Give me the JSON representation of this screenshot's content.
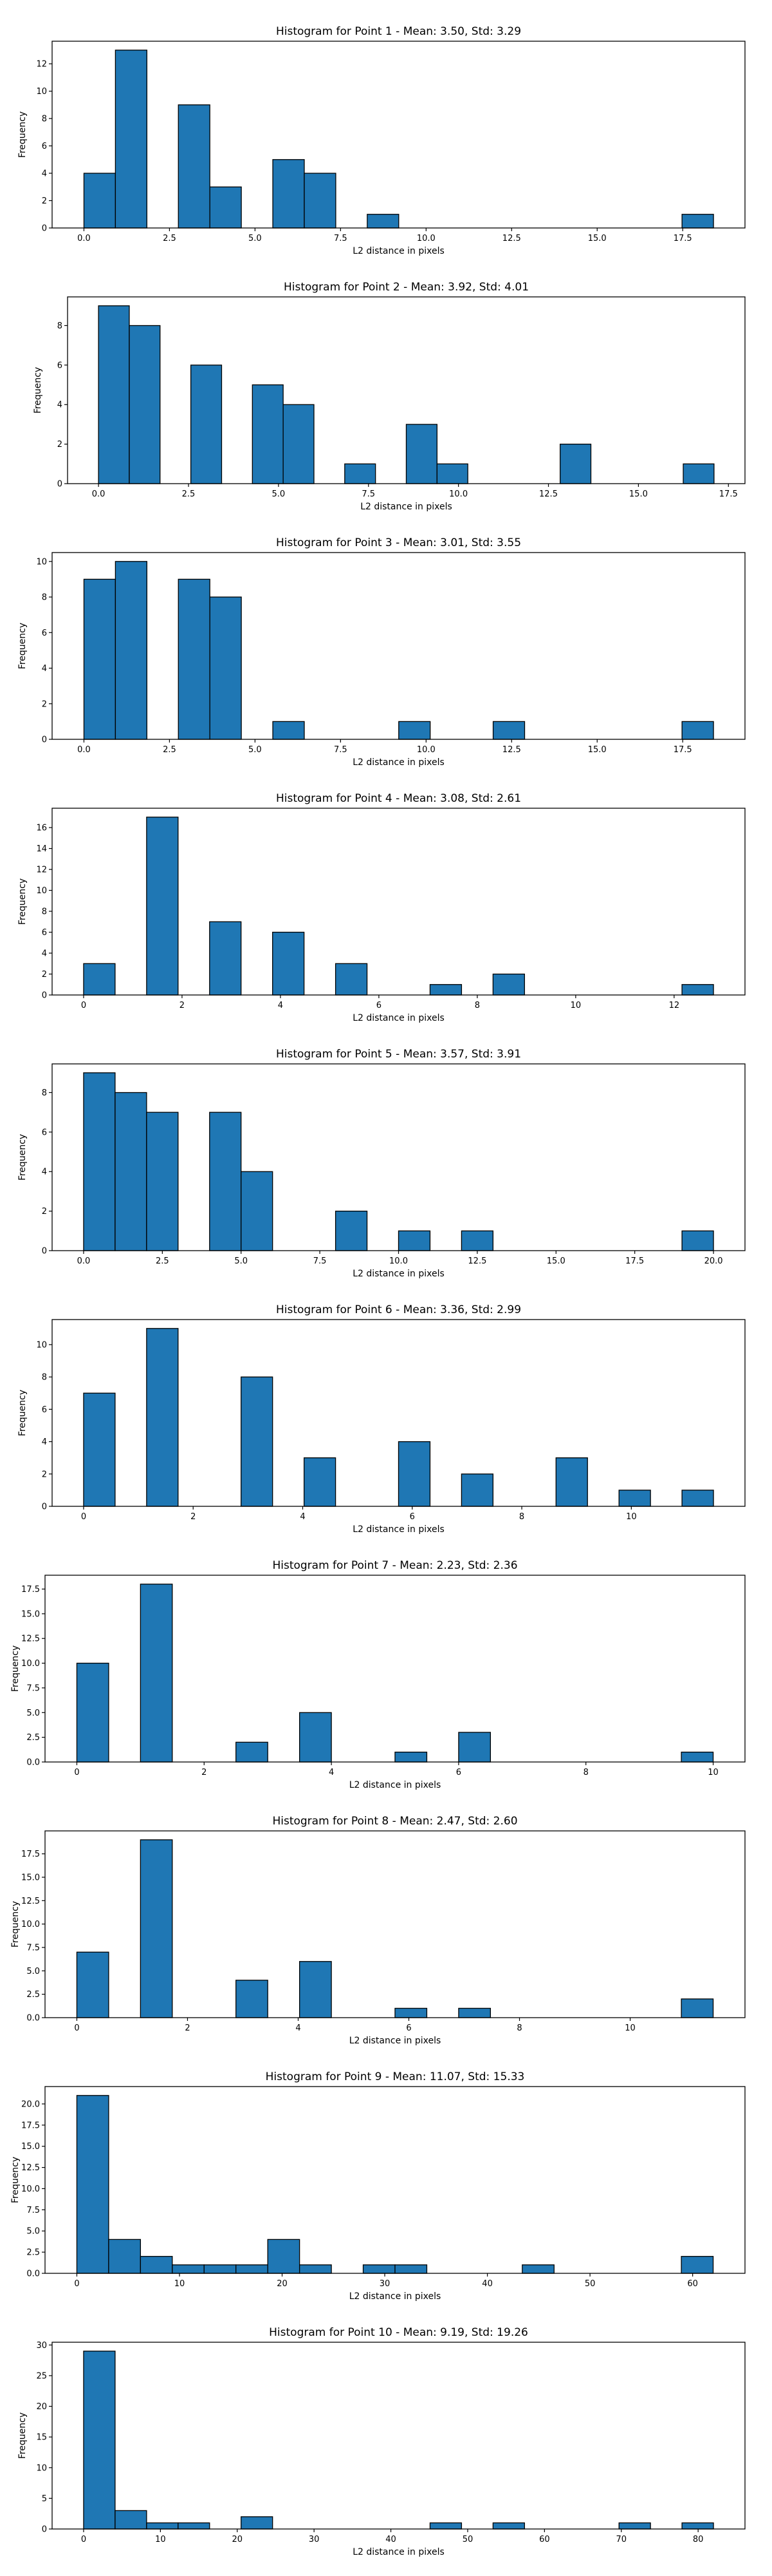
{
  "chart_data": [
    {
      "type": "bar",
      "title": "Histogram for Point 1 - Mean: 3.50, Std: 3.29",
      "xlabel": "L2 distance in pixels",
      "ylabel": "Frequency",
      "xlim": [
        -0.93,
        19.32
      ],
      "ylim": [
        0,
        13.65
      ],
      "xticks": [
        0.0,
        2.5,
        5.0,
        7.5,
        10.0,
        12.5,
        15.0,
        17.5
      ],
      "xtick_labels": [
        "0.0",
        "2.5",
        "5.0",
        "7.5",
        "10.0",
        "12.5",
        "15.0",
        "17.5"
      ],
      "yticks": [
        0,
        2,
        4,
        6,
        8,
        10,
        12
      ],
      "ytick_labels": [
        "0",
        "2",
        "4",
        "6",
        "8",
        "10",
        "12"
      ],
      "bin_edges": [
        0.0,
        0.92,
        1.84,
        2.76,
        3.68,
        4.6,
        5.52,
        6.44,
        7.36,
        8.28,
        9.2,
        10.12,
        11.04,
        11.96,
        12.88,
        13.8,
        14.72,
        15.64,
        16.56,
        17.48,
        18.4
      ],
      "counts": [
        4,
        13,
        0,
        9,
        3,
        0,
        5,
        4,
        0,
        1,
        0,
        0,
        0,
        0,
        0,
        0,
        0,
        0,
        0,
        1
      ]
    },
    {
      "type": "bar",
      "title": "Histogram for Point 2 - Mean: 3.92, Std: 4.01",
      "xlabel": "L2 distance in pixels",
      "ylabel": "Frequency",
      "xlim": [
        -0.86,
        17.96
      ],
      "ylim": [
        0,
        9.45
      ],
      "xticks": [
        0.0,
        2.5,
        5.0,
        7.5,
        10.0,
        12.5,
        15.0,
        17.5
      ],
      "xtick_labels": [
        "0.0",
        "2.5",
        "5.0",
        "7.5",
        "10.0",
        "12.5",
        "15.0",
        "17.5"
      ],
      "yticks": [
        0,
        2,
        4,
        6,
        8
      ],
      "ytick_labels": [
        "0",
        "2",
        "4",
        "6",
        "8"
      ],
      "bin_edges": [
        0.0,
        0.855,
        1.71,
        2.565,
        3.42,
        4.275,
        5.13,
        5.985,
        6.84,
        7.695,
        8.55,
        9.405,
        10.26,
        11.115,
        11.97,
        12.825,
        13.68,
        14.535,
        15.39,
        16.245,
        17.1
      ],
      "counts": [
        9,
        8,
        0,
        6,
        0,
        5,
        4,
        0,
        1,
        0,
        3,
        1,
        0,
        0,
        0,
        2,
        0,
        0,
        0,
        1
      ]
    },
    {
      "type": "bar",
      "title": "Histogram for Point 3 - Mean: 3.01, Std: 3.55",
      "xlabel": "L2 distance in pixels",
      "ylabel": "Frequency",
      "xlim": [
        -0.93,
        19.32
      ],
      "ylim": [
        0,
        10.5
      ],
      "xticks": [
        0.0,
        2.5,
        5.0,
        7.5,
        10.0,
        12.5,
        15.0,
        17.5
      ],
      "xtick_labels": [
        "0.0",
        "2.5",
        "5.0",
        "7.5",
        "10.0",
        "12.5",
        "15.0",
        "17.5"
      ],
      "yticks": [
        0,
        2,
        4,
        6,
        8,
        10
      ],
      "ytick_labels": [
        "0",
        "2",
        "4",
        "6",
        "8",
        "10"
      ],
      "bin_edges": [
        0.0,
        0.92,
        1.84,
        2.76,
        3.68,
        4.6,
        5.52,
        6.44,
        7.36,
        8.28,
        9.2,
        10.12,
        11.04,
        11.96,
        12.88,
        13.8,
        14.72,
        15.64,
        16.56,
        17.48,
        18.4
      ],
      "counts": [
        9,
        10,
        0,
        9,
        8,
        0,
        1,
        0,
        0,
        0,
        1,
        0,
        0,
        1,
        0,
        0,
        0,
        0,
        0,
        1
      ]
    },
    {
      "type": "bar",
      "title": "Histogram for Point 4 - Mean: 3.08, Std: 2.61",
      "xlabel": "L2 distance in pixels",
      "ylabel": "Frequency",
      "xlim": [
        -0.64,
        13.44
      ],
      "ylim": [
        0,
        17.85
      ],
      "xticks": [
        0,
        2,
        4,
        6,
        8,
        10,
        12
      ],
      "xtick_labels": [
        "0",
        "2",
        "4",
        "6",
        "8",
        "10",
        "12"
      ],
      "yticks": [
        0,
        2,
        4,
        6,
        8,
        10,
        12,
        14,
        16
      ],
      "ytick_labels": [
        "0",
        "2",
        "4",
        "6",
        "8",
        "10",
        "12",
        "14",
        "16"
      ],
      "bin_edges": [
        0.0,
        0.64,
        1.28,
        1.92,
        2.56,
        3.2,
        3.84,
        4.48,
        5.12,
        5.76,
        6.4,
        7.04,
        7.68,
        8.32,
        8.96,
        9.6,
        10.24,
        10.88,
        11.52,
        12.16,
        12.8
      ],
      "counts": [
        3,
        0,
        17,
        0,
        7,
        0,
        6,
        0,
        3,
        0,
        0,
        1,
        0,
        2,
        0,
        0,
        0,
        0,
        0,
        1
      ]
    },
    {
      "type": "bar",
      "title": "Histogram for Point 5 - Mean: 3.57, Std: 3.91",
      "xlabel": "L2 distance in pixels",
      "ylabel": "Frequency",
      "xlim": [
        -1.0,
        21.0
      ],
      "ylim": [
        0,
        9.45
      ],
      "xticks": [
        0.0,
        2.5,
        5.0,
        7.5,
        10.0,
        12.5,
        15.0,
        17.5,
        20.0
      ],
      "xtick_labels": [
        "0.0",
        "2.5",
        "5.0",
        "7.5",
        "10.0",
        "12.5",
        "15.0",
        "17.5",
        "20.0"
      ],
      "yticks": [
        0,
        2,
        4,
        6,
        8
      ],
      "ytick_labels": [
        "0",
        "2",
        "4",
        "6",
        "8"
      ],
      "bin_edges": [
        0.0,
        1.0,
        2.0,
        3.0,
        4.0,
        5.0,
        6.0,
        7.0,
        8.0,
        9.0,
        10.0,
        11.0,
        12.0,
        13.0,
        14.0,
        15.0,
        16.0,
        17.0,
        18.0,
        19.0,
        20.0
      ],
      "counts": [
        9,
        8,
        7,
        0,
        7,
        4,
        0,
        0,
        2,
        0,
        1,
        0,
        1,
        0,
        0,
        0,
        0,
        0,
        0,
        1
      ]
    },
    {
      "type": "bar",
      "title": "Histogram for Point 6 - Mean: 3.36, Std: 2.99",
      "xlabel": "L2 distance in pixels",
      "ylabel": "Frequency",
      "xlim": [
        -0.575,
        12.075
      ],
      "ylim": [
        0,
        11.55
      ],
      "xticks": [
        0,
        2,
        4,
        6,
        8,
        10
      ],
      "xtick_labels": [
        "0",
        "2",
        "4",
        "6",
        "8",
        "10"
      ],
      "yticks": [
        0,
        2,
        4,
        6,
        8,
        10
      ],
      "ytick_labels": [
        "0",
        "2",
        "4",
        "6",
        "8",
        "10"
      ],
      "bin_edges": [
        0.0,
        0.575,
        1.15,
        1.725,
        2.3,
        2.875,
        3.45,
        4.025,
        4.6,
        5.175,
        5.75,
        6.325,
        6.9,
        7.475,
        8.05,
        8.625,
        9.2,
        9.775,
        10.35,
        10.925,
        11.5
      ],
      "counts": [
        7,
        0,
        11,
        0,
        0,
        8,
        0,
        3,
        0,
        0,
        4,
        0,
        2,
        0,
        0,
        3,
        0,
        1,
        0,
        1
      ]
    },
    {
      "type": "bar",
      "title": "Histogram for Point 7 - Mean: 2.23, Std: 2.36",
      "xlabel": "L2 distance in pixels",
      "ylabel": "Frequency",
      "xlim": [
        -0.5,
        10.5
      ],
      "ylim": [
        0,
        18.9
      ],
      "xticks": [
        0,
        2,
        4,
        6,
        8,
        10
      ],
      "xtick_labels": [
        "0",
        "2",
        "4",
        "6",
        "8",
        "10"
      ],
      "yticks": [
        0.0,
        2.5,
        5.0,
        7.5,
        10.0,
        12.5,
        15.0,
        17.5
      ],
      "ytick_labels": [
        "0.0",
        "2.5",
        "5.0",
        "7.5",
        "10.0",
        "12.5",
        "15.0",
        "17.5"
      ],
      "bin_edges": [
        0.0,
        0.5,
        1.0,
        1.5,
        2.0,
        2.5,
        3.0,
        3.5,
        4.0,
        4.5,
        5.0,
        5.5,
        6.0,
        6.5,
        7.0,
        7.5,
        8.0,
        8.5,
        9.0,
        9.5,
        10.0
      ],
      "counts": [
        10,
        0,
        18,
        0,
        0,
        2,
        0,
        5,
        0,
        0,
        1,
        0,
        3,
        0,
        0,
        0,
        0,
        0,
        0,
        1
      ]
    },
    {
      "type": "bar",
      "title": "Histogram for Point 8 - Mean: 2.47, Std: 2.60",
      "xlabel": "L2 distance in pixels",
      "ylabel": "Frequency",
      "xlim": [
        -0.575,
        12.075
      ],
      "ylim": [
        0,
        19.95
      ],
      "xticks": [
        0,
        2,
        4,
        6,
        8,
        10
      ],
      "xtick_labels": [
        "0",
        "2",
        "4",
        "6",
        "8",
        "10"
      ],
      "yticks": [
        0.0,
        2.5,
        5.0,
        7.5,
        10.0,
        12.5,
        15.0,
        17.5
      ],
      "ytick_labels": [
        "0.0",
        "2.5",
        "5.0",
        "7.5",
        "10.0",
        "12.5",
        "15.0",
        "17.5"
      ],
      "bin_edges": [
        0.0,
        0.575,
        1.15,
        1.725,
        2.3,
        2.875,
        3.45,
        4.025,
        4.6,
        5.175,
        5.75,
        6.325,
        6.9,
        7.475,
        8.05,
        8.625,
        9.2,
        9.775,
        10.35,
        10.925,
        11.5
      ],
      "counts": [
        7,
        0,
        19,
        0,
        0,
        4,
        0,
        6,
        0,
        0,
        1,
        0,
        1,
        0,
        0,
        0,
        0,
        0,
        0,
        2
      ]
    },
    {
      "type": "bar",
      "title": "Histogram for Point 9 - Mean: 11.07, Std: 15.33",
      "xlabel": "L2 distance in pixels",
      "ylabel": "Frequency",
      "xlim": [
        -3.1,
        65.1
      ],
      "ylim": [
        0,
        22.05
      ],
      "xticks": [
        0,
        10,
        20,
        30,
        40,
        50,
        60
      ],
      "xtick_labels": [
        "0",
        "10",
        "20",
        "30",
        "40",
        "50",
        "60"
      ],
      "yticks": [
        0.0,
        2.5,
        5.0,
        7.5,
        10.0,
        12.5,
        15.0,
        17.5,
        20.0
      ],
      "ytick_labels": [
        "0.0",
        "2.5",
        "5.0",
        "7.5",
        "10.0",
        "12.5",
        "15.0",
        "17.5",
        "20.0"
      ],
      "bin_edges": [
        0.0,
        3.1,
        6.2,
        9.3,
        12.4,
        15.5,
        18.6,
        21.7,
        24.8,
        27.9,
        31.0,
        34.1,
        37.2,
        40.3,
        43.4,
        46.5,
        49.6,
        52.7,
        55.8,
        58.9,
        62.0
      ],
      "counts": [
        21,
        4,
        2,
        1,
        1,
        1,
        4,
        1,
        0,
        1,
        1,
        0,
        0,
        0,
        1,
        0,
        0,
        0,
        0,
        2
      ]
    },
    {
      "type": "bar",
      "title": "Histogram for Point 10 - Mean: 9.19, Std: 19.26",
      "xlabel": "L2 distance in pixels",
      "ylabel": "Frequency",
      "xlim": [
        -4.1,
        86.1
      ],
      "ylim": [
        0,
        30.45
      ],
      "xticks": [
        0,
        10,
        20,
        30,
        40,
        50,
        60,
        70,
        80
      ],
      "xtick_labels": [
        "0",
        "10",
        "20",
        "30",
        "40",
        "50",
        "60",
        "70",
        "80"
      ],
      "yticks": [
        0,
        5,
        10,
        15,
        20,
        25,
        30
      ],
      "ytick_labels": [
        "0",
        "5",
        "10",
        "15",
        "20",
        "25",
        "30"
      ],
      "bin_edges": [
        0.0,
        4.1,
        8.2,
        12.3,
        16.4,
        20.5,
        24.6,
        28.7,
        32.8,
        36.9,
        41.0,
        45.1,
        49.2,
        53.3,
        57.4,
        61.5,
        65.6,
        69.7,
        73.8,
        77.9,
        82.0
      ],
      "counts": [
        29,
        3,
        1,
        1,
        0,
        2,
        0,
        0,
        0,
        0,
        0,
        1,
        0,
        1,
        0,
        0,
        0,
        1,
        0,
        1
      ]
    }
  ]
}
